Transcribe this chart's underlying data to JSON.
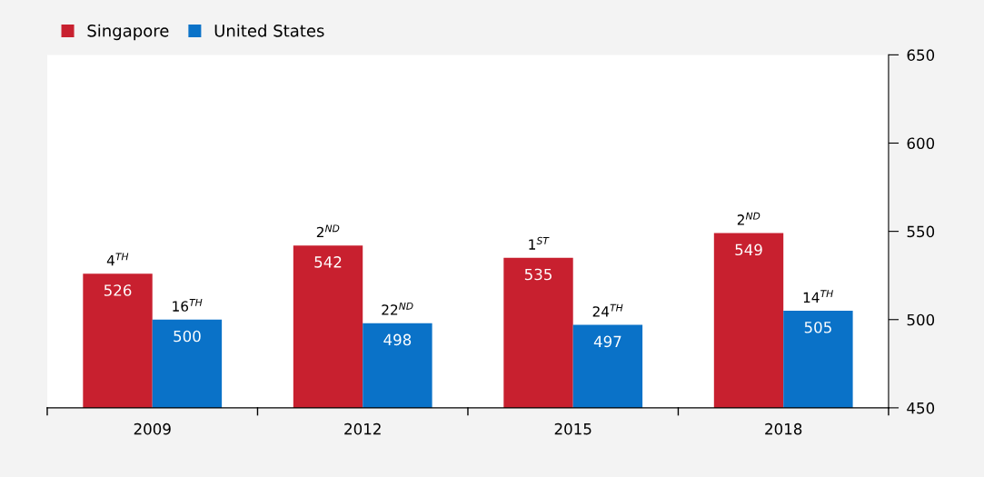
{
  "chart_data": {
    "type": "bar",
    "categories": [
      "2009",
      "2012",
      "2015",
      "2018"
    ],
    "series": [
      {
        "name": "Singapore",
        "color": "#c8202f",
        "values": [
          526,
          542,
          535,
          549
        ]
      },
      {
        "name": "United States",
        "color": "#0a72c8",
        "values": [
          500,
          498,
          497,
          505
        ]
      }
    ],
    "ylim": [
      450,
      650
    ],
    "yticks": [
      450,
      500,
      550,
      600,
      650
    ],
    "grid": false,
    "legend": "top left",
    "data_labels": true,
    "annotations": [
      {
        "text": "4$^{TH}$",
        "x": "2009",
        "y": 526
      },
      {
        "text": "16$^{TH}$",
        "x": "2009",
        "y": 500
      },
      {
        "text": "2$^{ND}$",
        "x": "2012",
        "y": 542
      },
      {
        "text": "22$^{ND}$",
        "x": "2012",
        "y": 498
      },
      {
        "text": "1$^{ST}$",
        "x": "2015",
        "y": 535
      },
      {
        "text": "24$^{TH}$",
        "x": "2015",
        "y": 497
      },
      {
        "text": "2$^{ND}$",
        "x": "2018",
        "y": 549
      },
      {
        "text": "14$^{TH}$",
        "x": "2018",
        "y": 505
      }
    ]
  }
}
